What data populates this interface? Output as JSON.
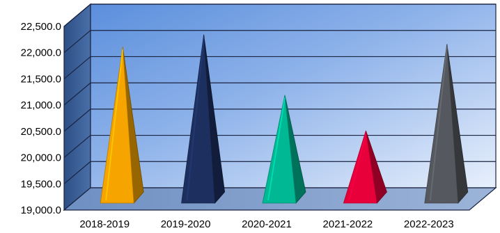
{
  "chart_data": {
    "type": "bar",
    "bar_shape": "pyramid",
    "three_d": true,
    "categories": [
      "2018-2019",
      "2019-2020",
      "2020-2021",
      "2021-2022",
      "2022-2023"
    ],
    "series": [
      {
        "values": [
          21900,
          22130,
          20980,
          20300,
          21950
        ]
      }
    ],
    "bar_colors": [
      "#f5a400",
      "#1c2f5e",
      "#00b894",
      "#e8003a",
      "#55595f"
    ],
    "y_ticks": [
      19000,
      19500,
      20000,
      20500,
      21000,
      21500,
      22000,
      22500
    ],
    "y_tick_labels": [
      "19,000.0",
      "19,500.0",
      "20,000.0",
      "20,500.0",
      "21,000.0",
      "21,500.0",
      "22,000.0",
      "22,500.0"
    ],
    "ylim": [
      19000,
      22500
    ],
    "grid": true,
    "legend": "none",
    "colors": {
      "wall_top": "#5b8fdc",
      "wall_bottom": "#e8f0fc",
      "side_wall": "#2d4f86",
      "floor": "#6e8fc2"
    }
  }
}
